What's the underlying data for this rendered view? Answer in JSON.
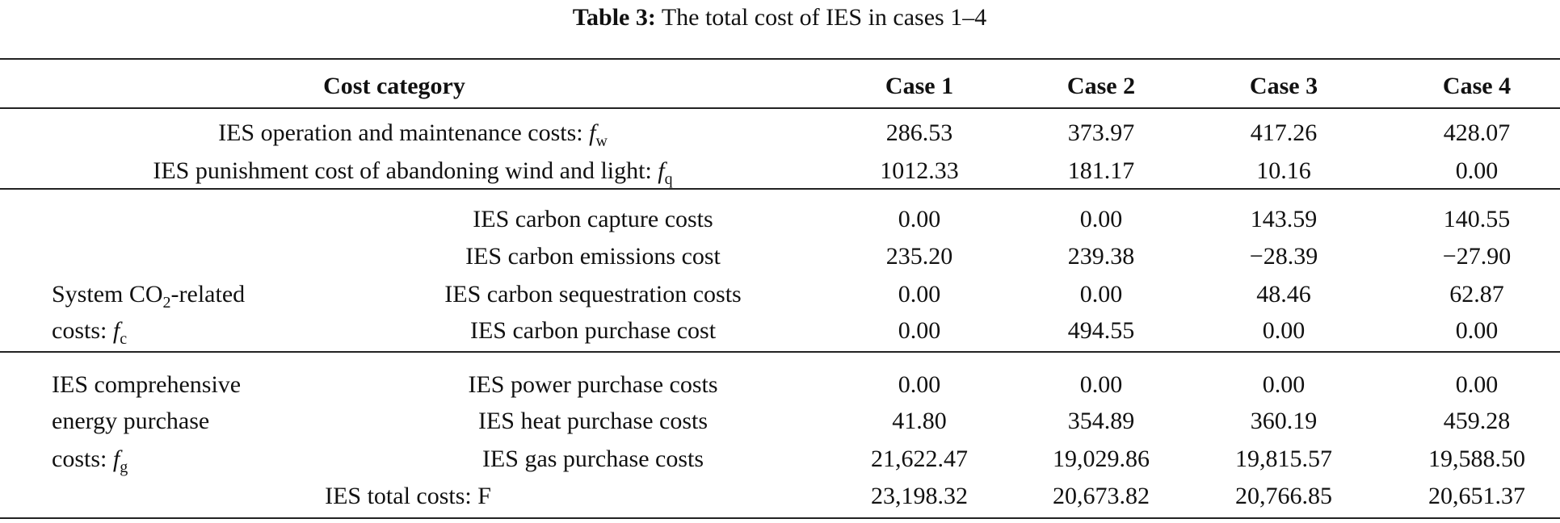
{
  "caption": {
    "label": "Table 3:",
    "text": " The total cost of IES in cases 1–4"
  },
  "table": {
    "header": [
      "Cost category",
      "Case 1",
      "Case 2",
      "Case 3",
      "Case 4"
    ],
    "sections": [
      {
        "rows": [
          {
            "label": [
              {
                "text": "IES operation and maintenance costs: "
              },
              {
                "var": "f"
              },
              {
                "sub": "w"
              }
            ],
            "values": [
              "286.53",
              "373.97",
              "417.26",
              "428.07"
            ]
          },
          {
            "label": [
              {
                "text": "IES punishment cost of abandoning wind and light: "
              },
              {
                "var": "f"
              },
              {
                "sub": "q"
              }
            ],
            "values": [
              "1012.33",
              "181.17",
              "10.16",
              "0.00"
            ]
          }
        ]
      },
      {
        "group_label": [
          [
            {
              "text": "System CO"
            },
            {
              "sub": "2"
            },
            {
              "text": "-related"
            }
          ],
          [
            {
              "text": "costs: "
            },
            {
              "var": "f"
            },
            {
              "sub": "c"
            }
          ]
        ],
        "rows": [
          {
            "label": [
              {
                "text": "IES carbon capture costs"
              }
            ],
            "values": [
              "0.00",
              "0.00",
              "143.59",
              "140.55"
            ]
          },
          {
            "label": [
              {
                "text": "IES carbon emissions cost"
              }
            ],
            "values": [
              "235.20",
              "239.38",
              "−28.39",
              "−27.90"
            ]
          },
          {
            "label": [
              {
                "text": "IES carbon sequestration costs"
              }
            ],
            "values": [
              "0.00",
              "0.00",
              "48.46",
              "62.87"
            ]
          },
          {
            "label": [
              {
                "text": "IES carbon purchase cost"
              }
            ],
            "values": [
              "0.00",
              "494.55",
              "0.00",
              "0.00"
            ]
          }
        ]
      },
      {
        "group_label": [
          [
            {
              "text": "IES comprehensive"
            }
          ],
          [
            {
              "text": "energy purchase"
            }
          ],
          [
            {
              "text": "costs: "
            },
            {
              "var": "f"
            },
            {
              "sub": "g"
            }
          ]
        ],
        "rows": [
          {
            "label": [
              {
                "text": "IES power purchase costs"
              }
            ],
            "values": [
              "0.00",
              "0.00",
              "0.00",
              "0.00"
            ]
          },
          {
            "label": [
              {
                "text": "IES heat purchase costs"
              }
            ],
            "values": [
              "41.80",
              "354.89",
              "360.19",
              "459.28"
            ]
          },
          {
            "label": [
              {
                "text": "IES gas purchase costs"
              }
            ],
            "values": [
              "21,622.47",
              "19,029.86",
              "19,815.57",
              "19,588.50"
            ]
          },
          {
            "label": [
              {
                "text": "IES total costs: F"
              }
            ],
            "values": [
              "23,198.32",
              "20,673.82",
              "20,766.85",
              "20,651.37"
            ]
          }
        ]
      }
    ]
  }
}
